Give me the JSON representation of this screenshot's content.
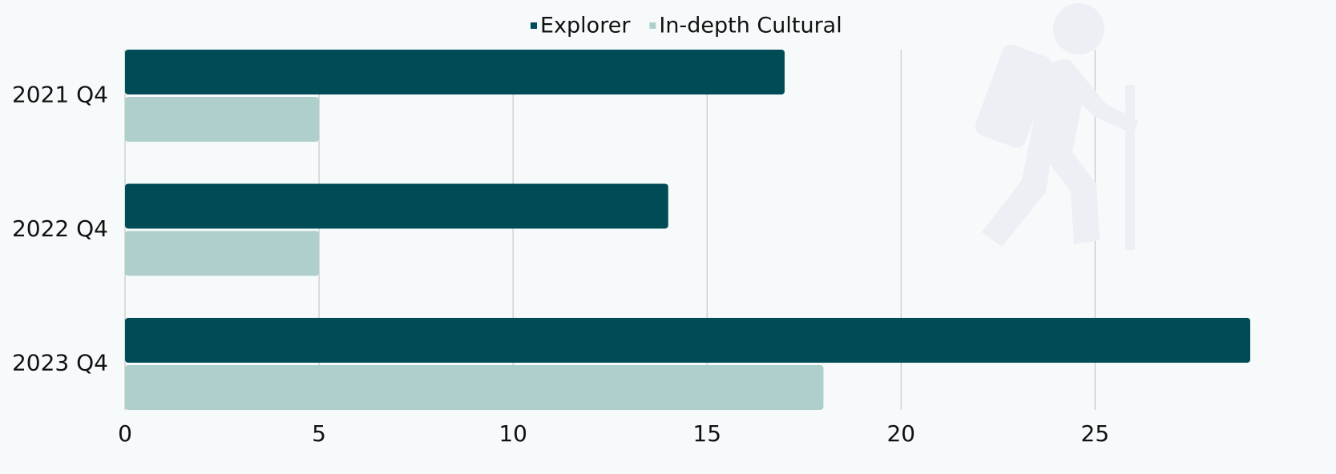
{
  "chart_data": {
    "type": "bar",
    "orientation": "horizontal",
    "categories": [
      "2021 Q4",
      "2022 Q4",
      "2023 Q4"
    ],
    "series": [
      {
        "name": "Explorer",
        "color": "#004c56",
        "values": [
          17,
          14,
          29
        ]
      },
      {
        "name": "In-depth Cultural",
        "color": "#aecfcb",
        "values": [
          5,
          5,
          18
        ]
      }
    ],
    "xlim": [
      0,
      29
    ],
    "xticks": [
      0,
      5,
      10,
      15,
      20,
      25
    ],
    "grid": true,
    "legend": "top"
  }
}
